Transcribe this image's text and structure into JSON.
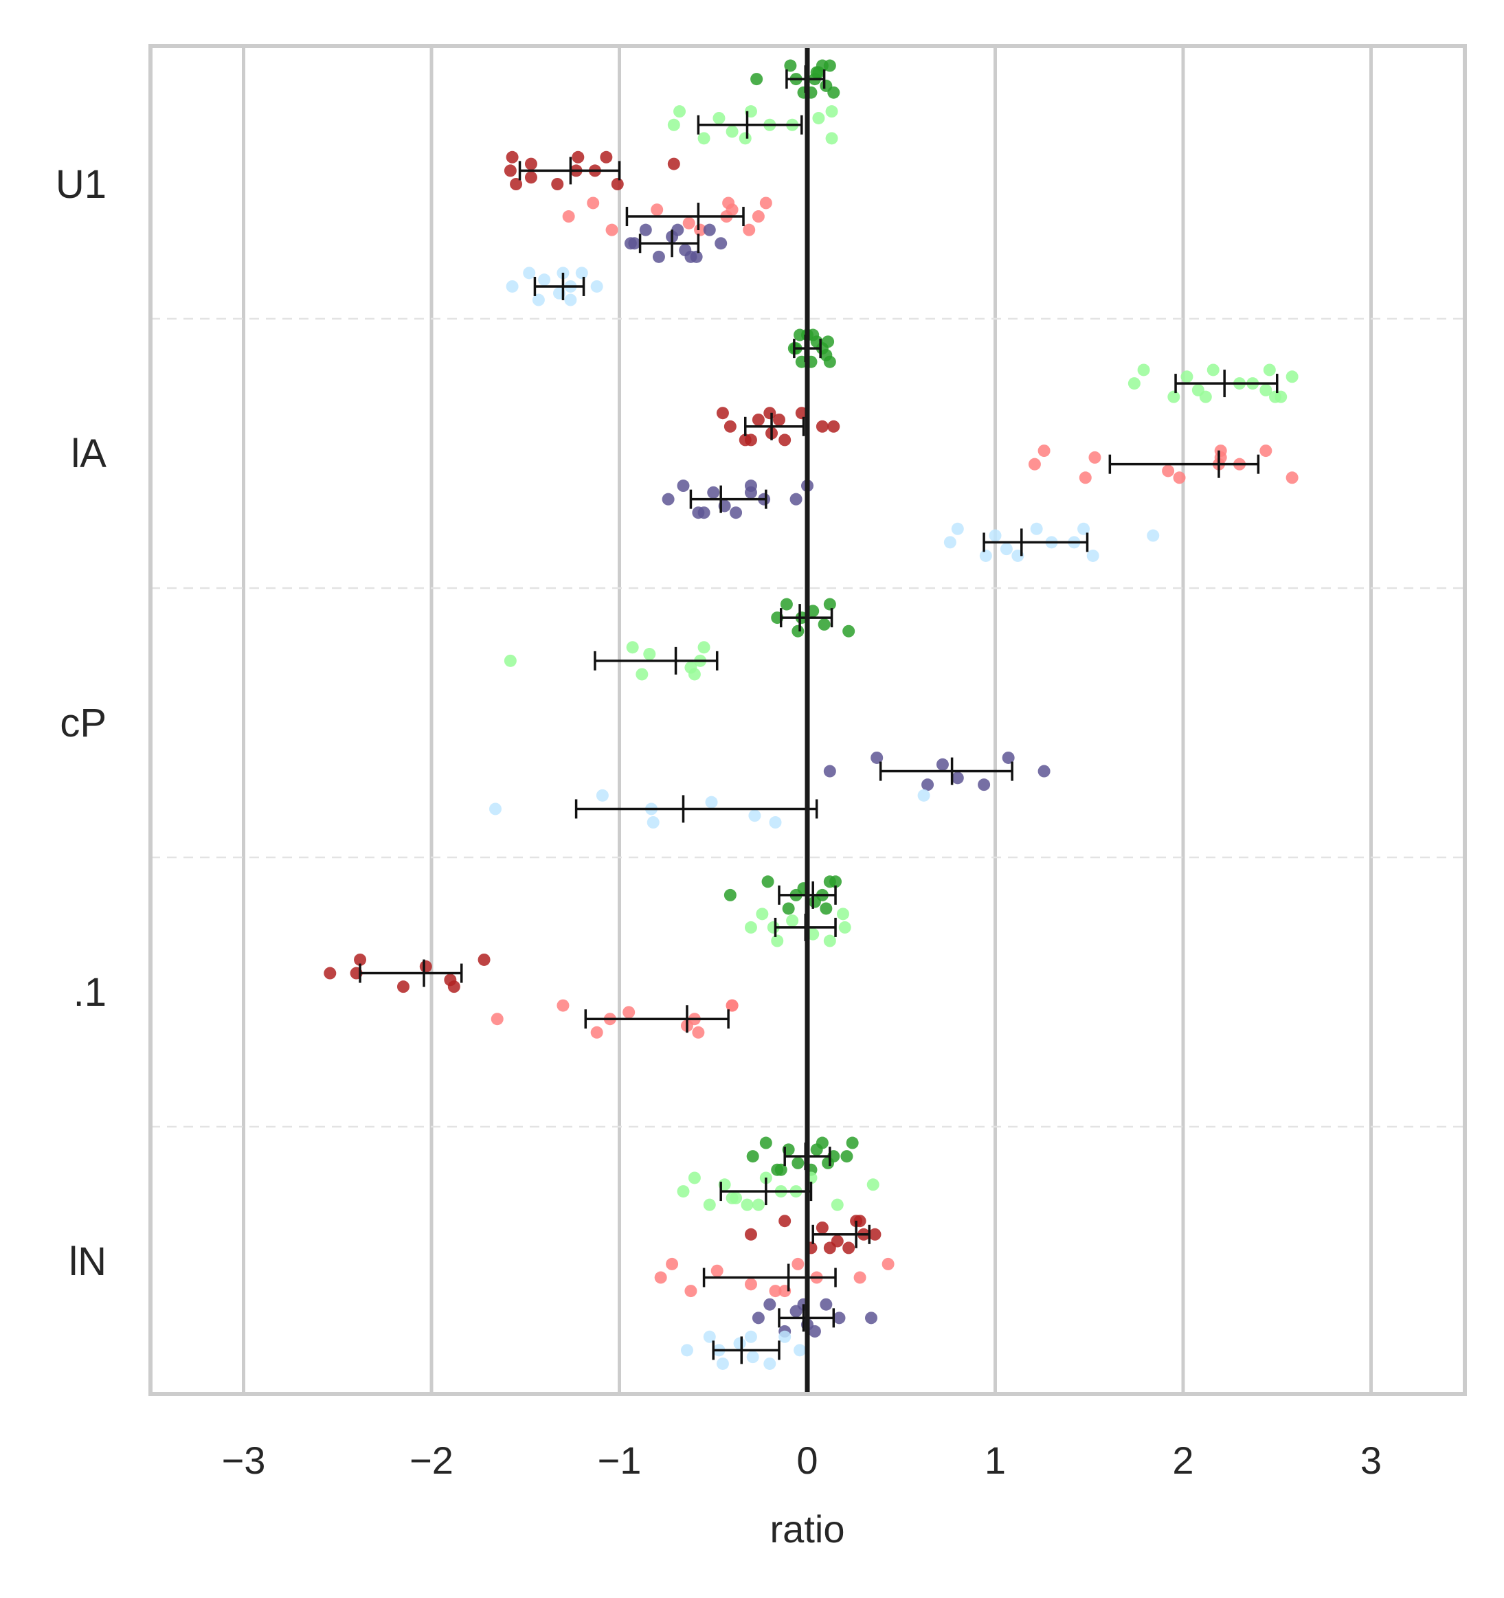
{
  "chart_data": {
    "type": "scatter",
    "subtype": "strip-plot-with-mean-and-ci",
    "orientation": "horizontal",
    "xlabel": "ratio",
    "ylabel": "",
    "xlim": [
      -3.5,
      3.5
    ],
    "x_ticks": [
      -3,
      -2,
      -1,
      0,
      1,
      2,
      3
    ],
    "x_tick_labels": [
      "−3",
      "−2",
      "−1",
      "0",
      "1",
      "2",
      "3"
    ],
    "grid": {
      "vertical": true,
      "horizontal_dashed_separators": true
    },
    "reference_line_x": 0,
    "colors": {
      "green": "#2ca02c",
      "light_green": "#98fb98",
      "dark_red": "#b22222",
      "pink": "#ff7f7f",
      "purple": "#5e5694",
      "light_blue": "#bfe6ff"
    },
    "categories": [
      {
        "label": "U1",
        "groups": [
          {
            "color": "green",
            "offset": -0.39,
            "points": [
              -0.27,
              -0.09,
              0.02,
              0.06,
              0.1,
              0.14,
              0.08,
              0.04,
              -0.06,
              0.12,
              -0.02,
              0.05
            ],
            "mean": -0.01,
            "ci": [
              -0.11,
              0.09
            ]
          },
          {
            "color": "light_green",
            "offset": -0.22,
            "points": [
              -0.71,
              -0.68,
              -0.55,
              -0.47,
              -0.4,
              -0.33,
              -0.3,
              -0.2,
              -0.08,
              0.13,
              0.13,
              0.06
            ],
            "mean": -0.32,
            "ci": [
              -0.58,
              -0.03
            ]
          },
          {
            "color": "dark_red",
            "offset": -0.05,
            "points": [
              -1.58,
              -1.57,
              -1.55,
              -1.47,
              -1.47,
              -1.33,
              -1.22,
              -1.23,
              -1.13,
              -1.07,
              -1.01,
              -0.71
            ],
            "mean": -1.26,
            "ci": [
              -1.53,
              -1.0
            ]
          },
          {
            "color": "pink",
            "offset": 0.12,
            "points": [
              -1.27,
              -1.14,
              -1.04,
              -0.8,
              -0.63,
              -0.57,
              -0.42,
              -0.43,
              -0.26,
              -0.22,
              -0.31,
              -0.4
            ],
            "mean": -0.58,
            "ci": [
              -0.96,
              -0.34
            ]
          },
          {
            "color": "purple",
            "offset": 0.22,
            "points": [
              -0.94,
              -0.86,
              -0.79,
              -0.72,
              -0.65,
              -0.59,
              -0.52,
              -0.46,
              -0.92,
              -0.69,
              -0.62
            ],
            "mean": -0.72,
            "ci": [
              -0.89,
              -0.58
            ]
          },
          {
            "color": "light_blue",
            "offset": 0.38,
            "points": [
              -1.57,
              -1.48,
              -1.43,
              -1.4,
              -1.32,
              -1.26,
              -1.2,
              -1.12,
              -1.26,
              -1.3
            ],
            "mean": -1.3,
            "ci": [
              -1.45,
              -1.19
            ]
          }
        ]
      },
      {
        "label": "lA",
        "groups": [
          {
            "color": "green",
            "offset": -0.39,
            "points": [
              -0.07,
              -0.04,
              0.02,
              0.05,
              0.1,
              0.12,
              0.03,
              -0.06,
              0.08,
              0.0,
              -0.03,
              0.11
            ],
            "mean": -0.01,
            "ci": [
              -0.07,
              0.07
            ]
          },
          {
            "color": "light_green",
            "offset": -0.26,
            "points": [
              1.74,
              1.79,
              1.95,
              2.02,
              2.08,
              2.12,
              2.16,
              2.3,
              2.37,
              2.46,
              2.49,
              2.58,
              2.44,
              2.52
            ],
            "mean": 2.22,
            "ci": [
              1.96,
              2.5
            ]
          },
          {
            "color": "dark_red",
            "offset": -0.1,
            "points": [
              -0.41,
              -0.45,
              -0.33,
              -0.26,
              -0.19,
              -0.12,
              -0.03,
              0.08,
              0.14,
              -0.2,
              -0.3,
              -0.15
            ],
            "mean": -0.19,
            "ci": [
              -0.33,
              -0.02
            ]
          },
          {
            "color": "pink",
            "offset": 0.04,
            "points": [
              1.21,
              1.26,
              1.48,
              1.53,
              1.92,
              1.98,
              2.2,
              2.19,
              2.3,
              2.44,
              2.58,
              2.2
            ],
            "mean": 2.19,
            "ci": [
              1.61,
              2.4
            ]
          },
          {
            "color": "purple",
            "offset": 0.17,
            "points": [
              -0.74,
              -0.66,
              -0.58,
              -0.5,
              -0.44,
              -0.38,
              -0.3,
              -0.23,
              -0.06,
              0.0,
              -0.55,
              -0.3
            ],
            "mean": -0.46,
            "ci": [
              -0.62,
              -0.22
            ]
          },
          {
            "color": "light_blue",
            "offset": 0.33,
            "points": [
              0.76,
              0.8,
              0.95,
              1.0,
              1.06,
              1.12,
              1.22,
              1.3,
              1.42,
              1.47,
              1.52,
              1.84
            ],
            "mean": 1.14,
            "ci": [
              0.94,
              1.49
            ]
          }
        ]
      },
      {
        "label": "cP",
        "groups": [
          {
            "color": "green",
            "offset": -0.39,
            "points": [
              -0.16,
              -0.11,
              -0.05,
              0.03,
              0.09,
              0.22,
              0.12,
              -0.03
            ],
            "mean": -0.04,
            "ci": [
              -0.14,
              0.13
            ]
          },
          {
            "color": "light_green",
            "offset": -0.23,
            "points": [
              -1.58,
              -0.93,
              -0.88,
              -0.84,
              -0.62,
              -0.6,
              -0.55,
              -0.57
            ],
            "mean": -0.7,
            "ci": [
              -1.13,
              -0.48
            ]
          },
          {
            "color": "purple",
            "offset": 0.18,
            "points": [
              0.12,
              0.37,
              0.64,
              0.72,
              0.8,
              0.94,
              1.07,
              1.26
            ],
            "mean": 0.77,
            "ci": [
              0.39,
              1.09
            ]
          },
          {
            "color": "light_blue",
            "offset": 0.32,
            "points": [
              -1.66,
              -1.09,
              -0.82,
              -0.51,
              -0.28,
              -0.17,
              0.62,
              -0.83
            ],
            "mean": -0.66,
            "ci": [
              -1.23,
              0.05
            ]
          }
        ]
      },
      {
        "label": ".1",
        "groups": [
          {
            "color": "green",
            "offset": -0.36,
            "points": [
              -0.41,
              -0.21,
              -0.1,
              -0.02,
              0.04,
              0.1,
              0.15,
              0.08,
              -0.06,
              0.12
            ],
            "mean": 0.03,
            "ci": [
              -0.15,
              0.15
            ]
          },
          {
            "color": "light_green",
            "offset": -0.24,
            "points": [
              -0.3,
              -0.24,
              -0.16,
              -0.08,
              0.03,
              0.12,
              0.19,
              0.2,
              -0.18
            ],
            "mean": -0.01,
            "ci": [
              -0.17,
              0.15
            ]
          },
          {
            "color": "dark_red",
            "offset": -0.07,
            "points": [
              -2.54,
              -2.38,
              -2.15,
              -2.03,
              -1.9,
              -1.88,
              -1.72,
              -2.4
            ],
            "mean": -2.04,
            "ci": [
              -2.38,
              -1.84
            ]
          },
          {
            "color": "pink",
            "offset": 0.1,
            "points": [
              -1.65,
              -1.3,
              -1.12,
              -0.95,
              -0.64,
              -0.58,
              -0.4,
              -0.6,
              -1.05,
              -0.4
            ],
            "mean": -0.64,
            "ci": [
              -1.18,
              -0.42
            ]
          }
        ]
      },
      {
        "label": "lN",
        "groups": [
          {
            "color": "green",
            "offset": -0.39,
            "points": [
              -0.29,
              -0.22,
              -0.16,
              -0.1,
              -0.05,
              0.02,
              0.08,
              0.14,
              0.21,
              0.24,
              -0.14,
              0.05,
              0.11
            ],
            "mean": -0.01,
            "ci": [
              -0.12,
              0.12
            ]
          },
          {
            "color": "light_green",
            "offset": -0.26,
            "points": [
              -0.66,
              -0.6,
              -0.52,
              -0.44,
              -0.38,
              -0.32,
              -0.22,
              -0.14,
              -0.06,
              0.02,
              0.16,
              0.35,
              -0.4,
              -0.26
            ],
            "mean": -0.22,
            "ci": [
              -0.46,
              0.02
            ]
          },
          {
            "color": "dark_red",
            "offset": -0.1,
            "points": [
              -0.3,
              -0.12,
              0.02,
              0.08,
              0.16,
              0.22,
              0.26,
              0.3,
              0.36,
              0.28,
              0.12
            ],
            "mean": 0.26,
            "ci": [
              0.03,
              0.33
            ]
          },
          {
            "color": "pink",
            "offset": 0.06,
            "points": [
              -0.78,
              -0.72,
              -0.62,
              -0.48,
              -0.3,
              -0.17,
              -0.05,
              0.05,
              0.28,
              0.43,
              -0.12
            ],
            "mean": -0.1,
            "ci": [
              -0.55,
              0.15
            ]
          },
          {
            "color": "purple",
            "offset": 0.21,
            "points": [
              -0.26,
              -0.2,
              -0.12,
              -0.06,
              0.0,
              0.04,
              0.1,
              0.17,
              0.34,
              -0.02
            ],
            "mean": -0.02,
            "ci": [
              -0.15,
              0.14
            ]
          },
          {
            "color": "light_blue",
            "offset": 0.33,
            "points": [
              -0.64,
              -0.52,
              -0.45,
              -0.36,
              -0.29,
              -0.2,
              -0.12,
              -0.04,
              -0.47,
              -0.3
            ],
            "mean": -0.35,
            "ci": [
              -0.5,
              -0.15
            ]
          }
        ]
      }
    ]
  }
}
